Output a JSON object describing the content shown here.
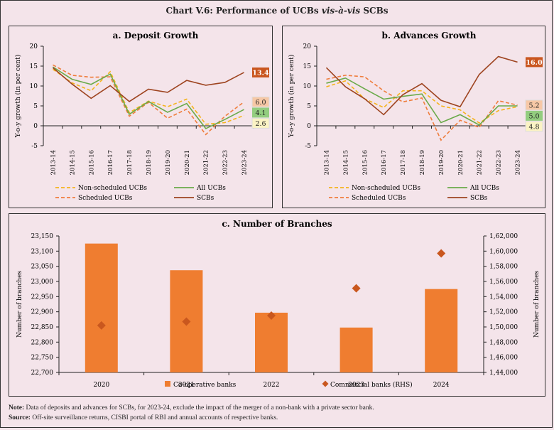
{
  "main_title": {
    "prefix": "Chart V.6: Performance of UCBs ",
    "italic": "vis-à-vis",
    "suffix": " SCBs"
  },
  "colors": {
    "non_scheduled": "#f5b31c",
    "scheduled": "#ef7d3c",
    "all_ucbs": "#6aaa4a",
    "scbs": "#9e4420",
    "bar": "#ef7d30",
    "diamond": "#c9571e",
    "label_scbs_bg": "#c9561f",
    "label_sched_bg": "#f7c8a6",
    "label_all_bg": "#93cd7f",
    "label_nonsched_bg": "#fbf3c4"
  },
  "chart_data": [
    {
      "id": "a",
      "type": "line",
      "title": "a. Deposit Growth",
      "ylabel": "Y-o-y growth (in per cent)",
      "xlabel": "",
      "ylim": [
        -5,
        20
      ],
      "yticks": [
        -5,
        0,
        5,
        10,
        15,
        20
      ],
      "categories": [
        "2013-14",
        "2014-15",
        "2015-16",
        "2016-17",
        "2017-18",
        "2018-19",
        "2019-20",
        "2020-21",
        "2021-22",
        "2022-23",
        "2023-24"
      ],
      "series": [
        {
          "name": "Non-scheduled UCBs",
          "key": "non_scheduled",
          "style": "dashed",
          "values": [
            14.2,
            10.8,
            8.8,
            13.6,
            3.3,
            6.2,
            4.8,
            6.7,
            0.4,
            0.8,
            2.6
          ]
        },
        {
          "name": "Scheduled UCBs",
          "key": "scheduled",
          "style": "dashed",
          "values": [
            15.3,
            12.7,
            12.2,
            12.3,
            2.4,
            5.9,
            1.9,
            4.2,
            -2.2,
            2.4,
            6.0
          ]
        },
        {
          "name": "All UCBs",
          "key": "all_ucbs",
          "style": "solid",
          "values": [
            14.8,
            11.7,
            10.4,
            13.0,
            2.9,
            6.1,
            3.4,
            5.6,
            -0.7,
            1.6,
            4.1
          ]
        },
        {
          "name": "SCBs",
          "key": "scbs",
          "style": "solid",
          "values": [
            14.6,
            10.5,
            6.9,
            10.1,
            6.1,
            9.2,
            8.4,
            11.4,
            10.2,
            10.9,
            13.4
          ]
        }
      ],
      "end_labels": [
        {
          "key": "scbs",
          "text": "13.4",
          "value": 13.4
        },
        {
          "key": "scheduled",
          "text": "6.0",
          "value": 6.0
        },
        {
          "key": "all_ucbs",
          "text": "4.1",
          "value": 4.1
        },
        {
          "key": "non_scheduled",
          "text": "2.6",
          "value": 2.6
        }
      ],
      "legend": {
        "placement": "bottom",
        "items": [
          "Non-scheduled UCBs",
          "All UCBs",
          "Scheduled UCBs",
          "SCBs"
        ]
      }
    },
    {
      "id": "b",
      "type": "line",
      "title": "b. Advances Growth",
      "ylabel": "Y-o-y growth (in per cent)",
      "xlabel": "",
      "ylim": [
        -5,
        20
      ],
      "yticks": [
        -5,
        0,
        5,
        10,
        15,
        20
      ],
      "categories": [
        "2013-14",
        "2014-15",
        "2015-16",
        "2016-17",
        "2017-18",
        "2018-19",
        "2019-20",
        "2020-21",
        "2021-22",
        "2022-23",
        "2023-24"
      ],
      "series": [
        {
          "name": "Non-scheduled UCBs",
          "key": "non_scheduled",
          "style": "dashed",
          "values": [
            9.8,
            11.3,
            6.8,
            4.6,
            8.8,
            8.8,
            5.0,
            4.0,
            0.7,
            3.8,
            4.8
          ]
        },
        {
          "name": "Scheduled UCBs",
          "key": "scheduled",
          "style": "dashed",
          "values": [
            11.7,
            12.7,
            12.3,
            8.8,
            6.0,
            7.0,
            -3.6,
            1.4,
            -0.4,
            6.3,
            5.2
          ]
        },
        {
          "name": "All UCBs",
          "key": "all_ucbs",
          "style": "solid",
          "values": [
            10.7,
            12.0,
            9.3,
            6.7,
            7.4,
            8.0,
            0.8,
            2.8,
            0.2,
            5.0,
            5.0
          ]
        },
        {
          "name": "SCBs",
          "key": "scbs",
          "style": "solid",
          "values": [
            14.6,
            9.8,
            6.8,
            2.8,
            7.8,
            10.6,
            6.4,
            4.8,
            12.9,
            17.4,
            16.0
          ]
        }
      ],
      "end_labels": [
        {
          "key": "scbs",
          "text": "16.0",
          "value": 16.0
        },
        {
          "key": "scheduled",
          "text": "5.2",
          "value": 5.2
        },
        {
          "key": "all_ucbs",
          "text": "5.0",
          "value": 5.0
        },
        {
          "key": "non_scheduled",
          "text": "4.8",
          "value": 4.8
        }
      ],
      "legend": {
        "placement": "bottom",
        "items": [
          "Non-scheduled UCBs",
          "All UCBs",
          "Scheduled UCBs",
          "SCBs"
        ]
      }
    },
    {
      "id": "c",
      "type": "bar",
      "title": "c. Number of Branches",
      "ylabel": "Number of branches",
      "ylabel_right": "Number of branches",
      "xlabel": "",
      "categories": [
        "2020",
        "2021",
        "2022",
        "2023",
        "2024"
      ],
      "ylim": [
        22700,
        23150
      ],
      "yticks": [
        22700,
        22750,
        22800,
        22850,
        22900,
        22950,
        23000,
        23050,
        23100,
        23150
      ],
      "yticks_labels": [
        "22,700",
        "22,750",
        "22,800",
        "22,850",
        "22,900",
        "22,950",
        "23,000",
        "23,050",
        "23,100",
        "23,150"
      ],
      "ylim_right": [
        144000,
        162000
      ],
      "yticks_right": [
        144000,
        146000,
        148000,
        150000,
        152000,
        154000,
        156000,
        158000,
        160000,
        162000
      ],
      "yticks_right_labels": [
        "1,44,000",
        "1,46,000",
        "1,48,000",
        "1,50,000",
        "1,52,000",
        "1,54,000",
        "1,56,000",
        "1,58,000",
        "1,60,000",
        "1,62,000"
      ],
      "series": [
        {
          "name": "Co-operative banks",
          "type": "bar",
          "axis": "left",
          "values": [
            23125,
            23037,
            22897,
            22848,
            22975
          ]
        },
        {
          "name": "Commercial banks (RHS)",
          "type": "scatter",
          "marker": "diamond",
          "axis": "right",
          "values": [
            150200,
            150700,
            151500,
            155100,
            159700
          ]
        }
      ],
      "legend": {
        "placement": "bottom",
        "items": [
          "Co-operative banks",
          "Commercial banks (RHS)"
        ]
      }
    }
  ],
  "footnote": {
    "note_label": "Note:",
    "note_text": " Data of deposits and advances for SCBs, for 2023-24, exclude the impact of the merger of a non-bank with a private sector bank.",
    "source_label": "Source:",
    "source_text": " Off-site surveillance returns, CISBI portal of RBI and annual accounts of respective banks."
  }
}
